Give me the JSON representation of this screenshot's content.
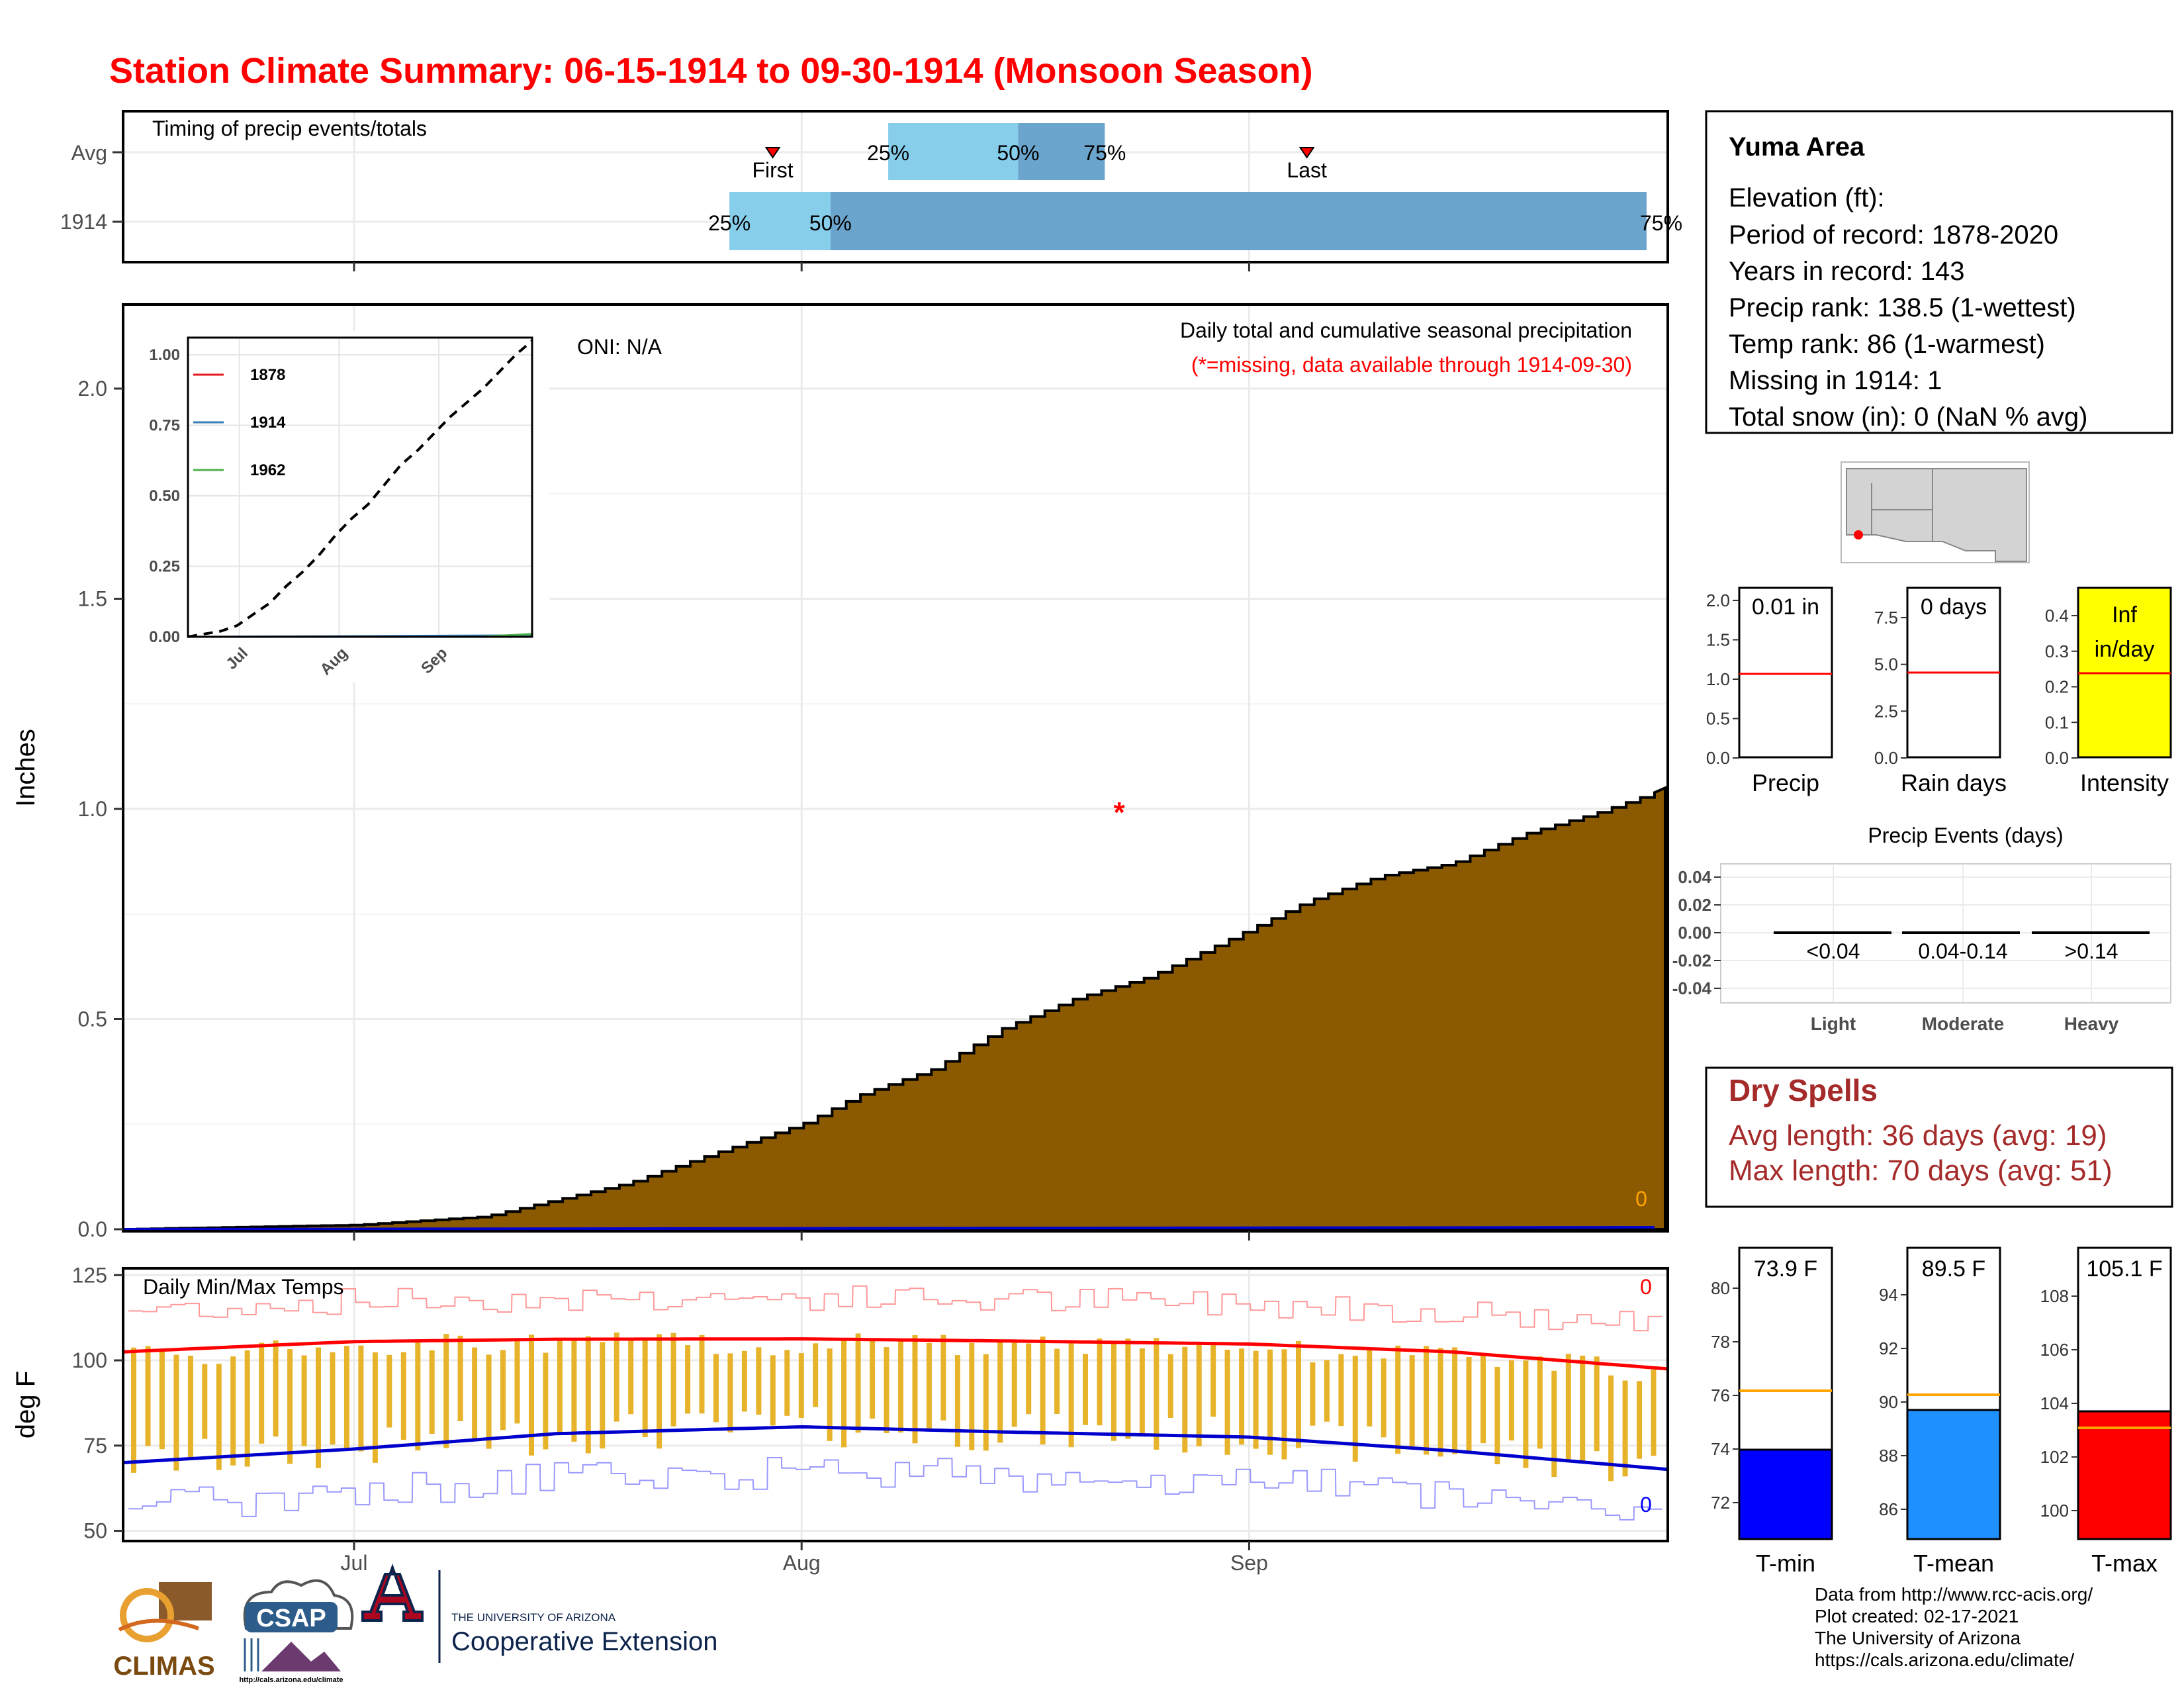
{
  "title": "Station Climate Summary: 06-15-1914 to 09-30-1914 (Monsoon Season)",
  "colors": {
    "title": "#FF0000",
    "precip_fill": "#8B5A00",
    "bar_light": "#87CEEB",
    "bar_mid": "#6BA5CE",
    "temp_bar": "#E7B32A",
    "tmax_line": "#FF0000",
    "tmin_line": "#0000FF",
    "intensity_bg": "#FFFF00",
    "dry_spells": "#A52A2A"
  },
  "timing_panel": {
    "label": "Timing of precip events/totals",
    "rows": [
      "Avg",
      "1914"
    ],
    "avg_markers": {
      "first": "First",
      "last": "Last",
      "first_date": "1914-07-30",
      "last_date": "1914-09-05"
    },
    "avg_percentiles": {
      "p25": "25%",
      "p50": "50%",
      "p75": "75%",
      "p25_date": "1914-08-07",
      "p50_date": "1914-08-16",
      "p75_date": "1914-08-22"
    },
    "year_percentiles": {
      "p25": "25%",
      "p50": "50%",
      "p75": "75%",
      "start_date": "1914-07-27",
      "p50_date": "1914-08-03",
      "end_date": "1914-09-30"
    }
  },
  "precip_panel": {
    "ylabel": "Inches",
    "oni": "ONI: N/A",
    "subtitle": "Daily total and cumulative seasonal precipitation",
    "missing_note": "(*=missing, data available through 1914-09-30)",
    "zero_label": "0",
    "yticks": [
      "0.0",
      "0.5",
      "1.0",
      "1.5",
      "2.0"
    ],
    "missing_marker": "*"
  },
  "inset": {
    "yticks": [
      "0.00",
      "0.25",
      "0.50",
      "0.75",
      "1.00"
    ],
    "xticks": [
      "Jul",
      "Aug",
      "Sep"
    ],
    "legend": [
      {
        "label": "1878",
        "color": "#E41A1C"
      },
      {
        "label": "1914",
        "color": "#377EB8"
      },
      {
        "label": "1962",
        "color": "#4DAF4A"
      }
    ]
  },
  "temp_panel": {
    "ylabel": "deg F",
    "label": "Daily Min/Max Temps",
    "top_zero": "0",
    "bottom_zero": "0",
    "yticks": [
      "50",
      "75",
      "100",
      "125"
    ]
  },
  "x_axis": {
    "ticks": [
      "Jul",
      "Aug",
      "Sep"
    ]
  },
  "station_box": {
    "name": "Yuma Area",
    "lines": [
      "Elevation (ft):",
      "Period of record: 1878-2020",
      "Years in record: 143",
      "Precip rank: 138.5 (1-wettest)",
      "Temp rank: 86 (1-warmest)",
      "Missing in 1914: 1",
      "Total snow (in): 0 (NaN % avg)"
    ]
  },
  "mini_panels": [
    {
      "label": "Precip",
      "value": "0.01 in",
      "yticks": [
        "0.0",
        "0.5",
        "1.0",
        "1.5",
        "2.0"
      ]
    },
    {
      "label": "Rain days",
      "value": "0 days",
      "yticks": [
        "0.0",
        "2.5",
        "5.0",
        "7.5"
      ]
    },
    {
      "label": "Intensity",
      "value1": "Inf",
      "value2": "in/day",
      "yticks": [
        "0.0",
        "0.1",
        "0.2",
        "0.3",
        "0.4"
      ]
    }
  ],
  "precip_events": {
    "title": "Precip Events (days)",
    "yticks": [
      "0.04",
      "0.02",
      "0.00",
      "-0.02",
      "-0.04"
    ],
    "bins": [
      "<0.04",
      "0.04-0.14",
      ">0.14"
    ],
    "categories": [
      "Light",
      "Moderate",
      "Heavy"
    ]
  },
  "dry_spells": {
    "title": "Dry Spells",
    "avg": "Avg length: 36 days (avg: 19)",
    "max": "Max length: 70 days (avg: 51)"
  },
  "temp_bars": [
    {
      "label": "T-min",
      "value": "73.9 F",
      "color": "#0000FF",
      "yticks": [
        "72",
        "74",
        "76",
        "78",
        "80"
      ]
    },
    {
      "label": "T-mean",
      "value": "89.5 F",
      "color": "#1E90FF",
      "yticks": [
        "86",
        "88",
        "90",
        "92",
        "94"
      ]
    },
    {
      "label": "T-max",
      "value": "105.1 F",
      "color": "#FF0000",
      "yticks": [
        "100",
        "102",
        "104",
        "106",
        "108"
      ]
    }
  ],
  "logos": {
    "climas": "CLIMAS",
    "csap": "CSAP",
    "csap_url": "http://cals.arizona.edu/climate",
    "ua_top": "THE UNIVERSITY OF ARIZONA",
    "ua_bottom": "Cooperative Extension"
  },
  "footer": [
    "Data from http://www.rcc-acis.org/",
    "Plot created: 02-17-2021",
    "The University of Arizona",
    "https://cals.arizona.edu/climate/"
  ],
  "chart_data": [
    {
      "type": "area",
      "title": "Daily total and cumulative seasonal precipitation",
      "ylabel": "Inches",
      "x_start": "1914-06-15",
      "x_end": "1914-09-30",
      "ylim": [
        0,
        2.2
      ],
      "series": [
        {
          "name": "",
          "x": [
            "1914-06-15",
            "1914-07-01",
            "1914-07-10",
            "1914-07-15",
            "1914-07-20",
            "1914-07-25",
            "1914-08-01",
            "1914-08-05",
            "1914-08-10",
            "1914-08-15",
            "1914-08-20",
            "1914-08-25",
            "1914-08-30",
            "1914-09-05",
            "1914-09-10",
            "1914-09-15",
            "1914-09-20",
            "1914-09-25",
            "1914-09-30"
          ],
          "values": [
            0.0,
            0.01,
            0.03,
            0.07,
            0.11,
            0.17,
            0.25,
            0.32,
            0.38,
            0.48,
            0.55,
            0.6,
            0.68,
            0.78,
            0.84,
            0.87,
            0.94,
            0.99,
            1.05
          ]
        }
      ],
      "missing_dates": [
        "1914-08-23"
      ]
    },
    {
      "type": "line",
      "title": "Daily Min/Max Temps",
      "ylabel": "deg F",
      "ylim": [
        47,
        127
      ],
      "series": [
        {
          "name": "avg max",
          "x": [
            "1914-06-15",
            "1914-07-01",
            "1914-07-15",
            "1914-08-01",
            "1914-08-15",
            "1914-09-01",
            "1914-09-15",
            "1914-09-30"
          ],
          "values": [
            102.5,
            105.5,
            106.2,
            106.3,
            105.7,
            104.8,
            102.5,
            97.5
          ]
        },
        {
          "name": "avg min",
          "x": [
            "1914-06-15",
            "1914-07-01",
            "1914-07-15",
            "1914-08-01",
            "1914-08-15",
            "1914-09-01",
            "1914-09-15",
            "1914-09-30"
          ],
          "values": [
            70,
            74,
            78.5,
            80.5,
            79,
            77.5,
            73.5,
            68
          ]
        }
      ]
    }
  ]
}
